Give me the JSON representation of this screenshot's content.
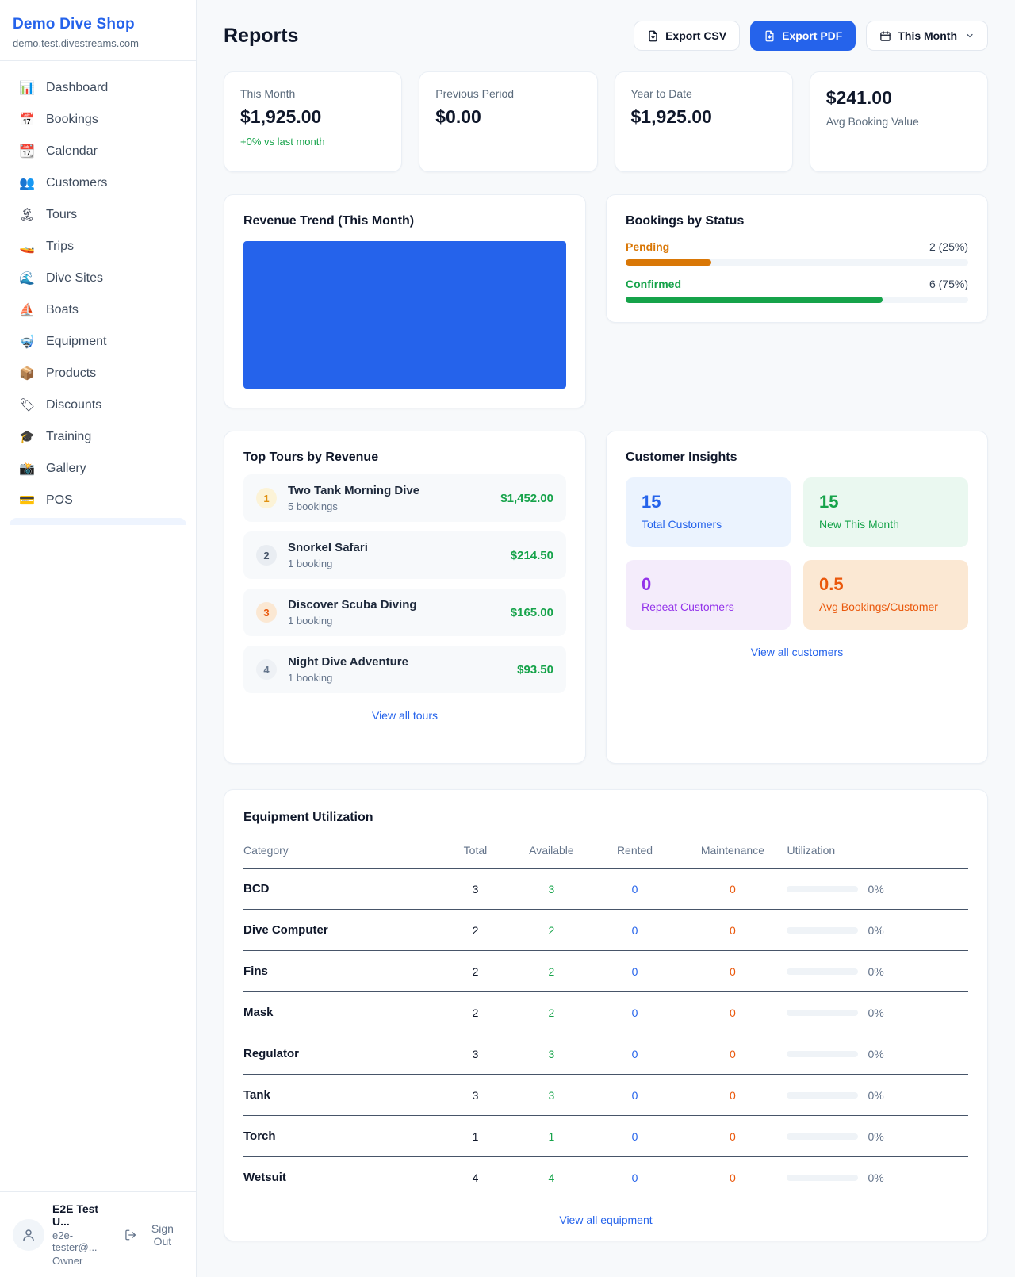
{
  "colors": {
    "accent": "#2563eb",
    "green": "#16a34a",
    "pending_orange": "#d97706",
    "maintenance_orange": "#ea580c",
    "purple": "#9333ea"
  },
  "sidebar": {
    "shop_name": "Demo Dive Shop",
    "shop_domain": "demo.test.divestreams.com",
    "items": [
      {
        "label": "Dashboard",
        "icon": "📊"
      },
      {
        "label": "Bookings",
        "icon": "📅"
      },
      {
        "label": "Calendar",
        "icon": "📆"
      },
      {
        "label": "Customers",
        "icon": "👥"
      },
      {
        "label": "Tours",
        "icon": "🏝"
      },
      {
        "label": "Trips",
        "icon": "🚤"
      },
      {
        "label": "Dive Sites",
        "icon": "🌊"
      },
      {
        "label": "Boats",
        "icon": "⛵"
      },
      {
        "label": "Equipment",
        "icon": "🤿"
      },
      {
        "label": "Products",
        "icon": "📦"
      },
      {
        "label": "Discounts",
        "icon": "🏷"
      },
      {
        "label": "Training",
        "icon": "🎓"
      },
      {
        "label": "Gallery",
        "icon": "📸"
      },
      {
        "label": "POS",
        "icon": "💳"
      }
    ],
    "user": {
      "name": "E2E Test U...",
      "email": "e2e-tester@...",
      "role": "Owner",
      "sign_out_label": "Sign Out"
    }
  },
  "header": {
    "title": "Reports",
    "export_csv_label": "Export CSV",
    "export_pdf_label": "Export PDF",
    "period_label": "This Month"
  },
  "stats": [
    {
      "label": "This Month",
      "value": "$1,925.00",
      "delta": "+0% vs last month"
    },
    {
      "label": "Previous Period",
      "value": "$0.00"
    },
    {
      "label": "Year to Date",
      "value": "$1,925.00"
    },
    {
      "label": "Avg Booking Value",
      "value": "$241.00"
    }
  ],
  "revenue_trend": {
    "title": "Revenue Trend (This Month)"
  },
  "bookings_by_status": {
    "title": "Bookings by Status",
    "rows": [
      {
        "label": "Pending",
        "value": "2 (25%)",
        "percent": 25
      },
      {
        "label": "Confirmed",
        "value": "6 (75%)",
        "percent": 75
      }
    ]
  },
  "top_tours": {
    "title": "Top Tours by Revenue",
    "rows": [
      {
        "rank": "1",
        "name": "Two Tank Morning Dive",
        "bookings": "5 bookings",
        "revenue": "$1,452.00"
      },
      {
        "rank": "2",
        "name": "Snorkel Safari",
        "bookings": "1 booking",
        "revenue": "$214.50"
      },
      {
        "rank": "3",
        "name": "Discover Scuba Diving",
        "bookings": "1 booking",
        "revenue": "$165.00"
      },
      {
        "rank": "4",
        "name": "Night Dive Adventure",
        "bookings": "1 booking",
        "revenue": "$93.50"
      }
    ],
    "view_all": "View all tours"
  },
  "customer_insights": {
    "title": "Customer Insights",
    "tiles": [
      {
        "value": "15",
        "label": "Total Customers"
      },
      {
        "value": "15",
        "label": "New This Month"
      },
      {
        "value": "0",
        "label": "Repeat Customers"
      },
      {
        "value": "0.5",
        "label": "Avg Bookings/Customer"
      }
    ],
    "view_all": "View all customers"
  },
  "equipment": {
    "title": "Equipment Utilization",
    "columns": [
      "Category",
      "Total",
      "Available",
      "Rented",
      "Maintenance",
      "Utilization"
    ],
    "rows": [
      {
        "category": "BCD",
        "total": "3",
        "available": "3",
        "rented": "0",
        "maintenance": "0",
        "utilization": "0%",
        "utilization_pct": 0
      },
      {
        "category": "Dive Computer",
        "total": "2",
        "available": "2",
        "rented": "0",
        "maintenance": "0",
        "utilization": "0%",
        "utilization_pct": 0
      },
      {
        "category": "Fins",
        "total": "2",
        "available": "2",
        "rented": "0",
        "maintenance": "0",
        "utilization": "0%",
        "utilization_pct": 0
      },
      {
        "category": "Mask",
        "total": "2",
        "available": "2",
        "rented": "0",
        "maintenance": "0",
        "utilization": "0%",
        "utilization_pct": 0
      },
      {
        "category": "Regulator",
        "total": "3",
        "available": "3",
        "rented": "0",
        "maintenance": "0",
        "utilization": "0%",
        "utilization_pct": 0
      },
      {
        "category": "Tank",
        "total": "3",
        "available": "3",
        "rented": "0",
        "maintenance": "0",
        "utilization": "0%",
        "utilization_pct": 0
      },
      {
        "category": "Torch",
        "total": "1",
        "available": "1",
        "rented": "0",
        "maintenance": "0",
        "utilization": "0%",
        "utilization_pct": 0
      },
      {
        "category": "Wetsuit",
        "total": "4",
        "available": "4",
        "rented": "0",
        "maintenance": "0",
        "utilization": "0%",
        "utilization_pct": 0
      }
    ],
    "view_all": "View all equipment"
  }
}
